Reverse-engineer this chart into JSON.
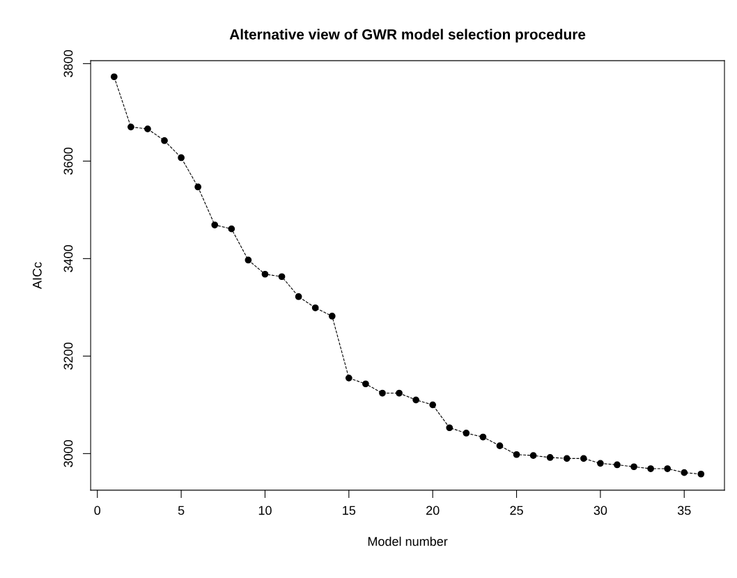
{
  "chart_data": {
    "type": "line",
    "title": "Alternative view of GWR model selection procedure",
    "xlabel": "Model number",
    "ylabel": "AICc",
    "x": [
      1,
      2,
      3,
      4,
      5,
      6,
      7,
      8,
      9,
      10,
      11,
      12,
      13,
      14,
      15,
      16,
      17,
      18,
      19,
      20,
      21,
      22,
      23,
      24,
      25,
      26,
      27,
      28,
      29,
      30,
      31,
      32,
      33,
      34,
      35,
      36
    ],
    "series": [
      {
        "color": "#000000",
        "values": [
          3773,
          3670,
          3666,
          3642,
          3607,
          3547,
          3469,
          3461,
          3397,
          3368,
          3363,
          3322,
          3299,
          3282,
          3155,
          3143,
          3124,
          3124,
          3110,
          3100,
          3053,
          3042,
          3034,
          3016,
          2998,
          2996,
          2992,
          2990,
          2990,
          2980,
          2977,
          2973,
          2969,
          2969,
          2961,
          2958
        ]
      }
    ],
    "xlim": [
      -0.4,
      37.4
    ],
    "ylim": [
      2925,
      3806
    ],
    "xticks": [
      0,
      5,
      10,
      15,
      20,
      25,
      30,
      35
    ],
    "yticks": [
      3000,
      3200,
      3400,
      3600,
      3800
    ],
    "marker": "circle",
    "line_style": "dashed",
    "grid": false,
    "legend": false
  }
}
